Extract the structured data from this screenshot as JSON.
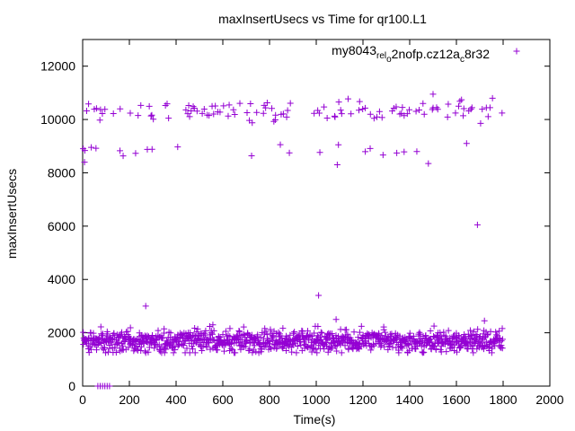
{
  "chart_data": {
    "type": "scatter",
    "title": "maxInsertUsecs vs Time for qr100.L1",
    "xlabel": "Time(s)",
    "ylabel": "maxInsertUsecs",
    "xlim": [
      0,
      2000
    ],
    "ylim": [
      0,
      13000
    ],
    "xticks": [
      0,
      200,
      400,
      600,
      800,
      1000,
      1200,
      1400,
      1600,
      1800,
      2000
    ],
    "yticks": [
      0,
      2000,
      4000,
      6000,
      8000,
      10000,
      12000
    ],
    "grid": false,
    "legend_position": "top-right",
    "series_color": "#9400d3",
    "legend": {
      "base": "my8043",
      "sub1": "rel",
      "mid1": "",
      "sub2": "o",
      "mid2": "2nofp.cz12a",
      "sub3": "c",
      "tail": "8r32"
    },
    "series": [
      {
        "name": "my8043_rel_o2nofp.cz12a_c8r32",
        "sample_interval_s": 5,
        "t_start": 0,
        "t_end": 1795,
        "gap": [
          890,
          990
        ],
        "bands": [
          {
            "level": "low",
            "typical": 1700,
            "min": 1250,
            "max": 2300
          },
          {
            "level": "high",
            "typical": 10300,
            "min": 9500,
            "max": 10950
          }
        ],
        "mid_cluster": {
          "typical": 8900,
          "min": 8150,
          "max": 9100
        },
        "outliers": [
          {
            "x": 270,
            "y": 3000
          },
          {
            "x": 1010,
            "y": 3400
          },
          {
            "x": 1085,
            "y": 2500
          },
          {
            "x": 1690,
            "y": 6050
          },
          {
            "x": 1720,
            "y": 2450
          },
          {
            "x": 1095,
            "y": 9050
          },
          {
            "x": 1090,
            "y": 8300
          },
          {
            "x": 1500,
            "y": 10950
          },
          {
            "x": 1480,
            "y": 8350
          },
          {
            "x": 8,
            "y": 8400
          }
        ],
        "zero_points": [
          {
            "x": 65,
            "y": 0
          },
          {
            "x": 75,
            "y": 0
          },
          {
            "x": 85,
            "y": 0
          },
          {
            "x": 95,
            "y": 0
          },
          {
            "x": 105,
            "y": 0
          },
          {
            "x": 115,
            "y": 0
          }
        ]
      }
    ]
  }
}
